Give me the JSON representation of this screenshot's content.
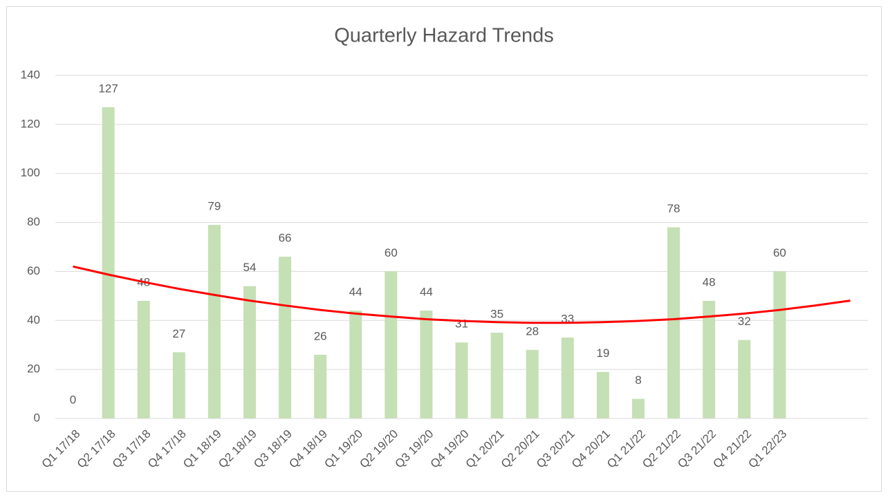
{
  "chart_data": {
    "type": "bar",
    "title": "Quarterly Hazard Trends",
    "categories": [
      "Q1 17/18",
      "Q2 17/18",
      "Q3 17/18",
      "Q4 17/18",
      "Q1 18/19",
      "Q2 18/19",
      "Q3 18/19",
      "Q4 18/19",
      "Q1 19/20",
      "Q2 19/20",
      "Q3 19/20",
      "Q4 19/20",
      "Q1 20/21",
      "Q2 20/21",
      "Q3 20/21",
      "Q4 20/21",
      "Q1 21/22",
      "Q2 21/22",
      "Q3 21/22",
      "Q4 21/22",
      "Q1 22/23",
      null,
      null
    ],
    "values": [
      0,
      127,
      48,
      27,
      79,
      54,
      66,
      26,
      44,
      60,
      44,
      31,
      35,
      28,
      33,
      19,
      8,
      78,
      48,
      32,
      60,
      null,
      null
    ],
    "color": "#c5e0b4",
    "trendline": {
      "color": "#ff0000",
      "values": [
        62.0,
        58.7,
        55.7,
        52.9,
        50.4,
        48.1,
        46.1,
        44.3,
        42.8,
        41.6,
        40.5,
        39.8,
        39.3,
        39.0,
        39.0,
        39.3,
        39.8,
        40.5,
        41.6,
        42.8,
        44.3,
        46.1,
        48.1
      ]
    },
    "ylim": [
      0,
      140
    ],
    "yticks": [
      0,
      20,
      40,
      60,
      80,
      100,
      120,
      140
    ],
    "grid": true
  }
}
